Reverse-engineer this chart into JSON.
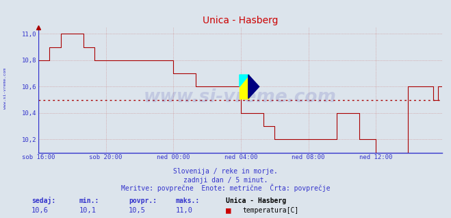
{
  "title": "Unica - Hasberg",
  "bg_color": "#dce4ec",
  "plot_bg_color": "#dce4ec",
  "line_color": "#aa0000",
  "avg_line_color": "#aa0000",
  "avg_value": 10.5,
  "ylim_min": 10.1,
  "ylim_max": 11.05,
  "yticks": [
    10.2,
    10.4,
    10.6,
    10.8,
    11.0
  ],
  "ytick_labels": [
    "10,2",
    "10,4",
    "10,6",
    "10,8",
    "11,0"
  ],
  "xtick_labels": [
    "sob 16:00",
    "sob 20:00",
    "ned 00:00",
    "ned 04:00",
    "ned 08:00",
    "ned 12:00"
  ],
  "xtick_positions": [
    0,
    48,
    96,
    144,
    192,
    240
  ],
  "grid_color": "#cc8888",
  "axis_color": "#3333cc",
  "text_color": "#3333cc",
  "watermark": "www.si-vreme.com",
  "watermark_color": "#1a1a99",
  "watermark_alpha": 0.13,
  "left_label": "www.si-vreme.com",
  "subtitle1": "Slovenija / reke in morje.",
  "subtitle2": "zadnji dan / 5 minut.",
  "subtitle3": "Meritve: povprečne  Enote: metrične  Črta: povprečje",
  "leg_labels": [
    "sedaj:",
    "min.:",
    "povpr.:",
    "maks.:"
  ],
  "leg_vals": [
    "10,6",
    "10,1",
    "10,5",
    "11,0"
  ],
  "legend_station": "Unica - Hasberg",
  "legend_series": "temperatura[C]",
  "legend_color": "#cc0000",
  "marker_x": 144,
  "marker_y": 10.6,
  "step_data": [
    10.8,
    10.8,
    10.8,
    10.8,
    10.8,
    10.8,
    10.8,
    10.8,
    10.9,
    10.9,
    10.9,
    10.9,
    10.9,
    10.9,
    10.9,
    10.9,
    11.0,
    11.0,
    11.0,
    11.0,
    11.0,
    11.0,
    11.0,
    11.0,
    11.0,
    11.0,
    11.0,
    11.0,
    11.0,
    11.0,
    11.0,
    11.0,
    10.9,
    10.9,
    10.9,
    10.9,
    10.9,
    10.9,
    10.9,
    10.9,
    10.8,
    10.8,
    10.8,
    10.8,
    10.8,
    10.8,
    10.8,
    10.8,
    10.8,
    10.8,
    10.8,
    10.8,
    10.8,
    10.8,
    10.8,
    10.8,
    10.8,
    10.8,
    10.8,
    10.8,
    10.8,
    10.8,
    10.8,
    10.8,
    10.8,
    10.8,
    10.8,
    10.8,
    10.8,
    10.8,
    10.8,
    10.8,
    10.8,
    10.8,
    10.8,
    10.8,
    10.8,
    10.8,
    10.8,
    10.8,
    10.8,
    10.8,
    10.8,
    10.8,
    10.8,
    10.8,
    10.8,
    10.8,
    10.8,
    10.8,
    10.8,
    10.8,
    10.8,
    10.8,
    10.8,
    10.8,
    10.7,
    10.7,
    10.7,
    10.7,
    10.7,
    10.7,
    10.7,
    10.7,
    10.7,
    10.7,
    10.7,
    10.7,
    10.7,
    10.7,
    10.7,
    10.7,
    10.6,
    10.6,
    10.6,
    10.6,
    10.6,
    10.6,
    10.6,
    10.6,
    10.6,
    10.6,
    10.6,
    10.6,
    10.6,
    10.6,
    10.6,
    10.6,
    10.6,
    10.6,
    10.6,
    10.6,
    10.6,
    10.6,
    10.6,
    10.6,
    10.6,
    10.6,
    10.6,
    10.6,
    10.6,
    10.6,
    10.6,
    10.6,
    10.4,
    10.4,
    10.4,
    10.4,
    10.4,
    10.4,
    10.4,
    10.4,
    10.4,
    10.4,
    10.4,
    10.4,
    10.4,
    10.4,
    10.4,
    10.4,
    10.3,
    10.3,
    10.3,
    10.3,
    10.3,
    10.3,
    10.3,
    10.3,
    10.2,
    10.2,
    10.2,
    10.2,
    10.2,
    10.2,
    10.2,
    10.2,
    10.2,
    10.2,
    10.2,
    10.2,
    10.2,
    10.2,
    10.2,
    10.2,
    10.2,
    10.2,
    10.2,
    10.2,
    10.2,
    10.2,
    10.2,
    10.2,
    10.2,
    10.2,
    10.2,
    10.2,
    10.2,
    10.2,
    10.2,
    10.2,
    10.2,
    10.2,
    10.2,
    10.2,
    10.2,
    10.2,
    10.2,
    10.2,
    10.2,
    10.2,
    10.2,
    10.2,
    10.4,
    10.4,
    10.4,
    10.4,
    10.4,
    10.4,
    10.4,
    10.4,
    10.4,
    10.4,
    10.4,
    10.4,
    10.4,
    10.4,
    10.4,
    10.4,
    10.2,
    10.2,
    10.2,
    10.2,
    10.2,
    10.2,
    10.2,
    10.2,
    10.2,
    10.2,
    10.2,
    10.2,
    10.1,
    10.1,
    10.1,
    10.1,
    10.1,
    10.1,
    10.1,
    10.1,
    10.1,
    10.1,
    10.1,
    10.1,
    10.1,
    10.1,
    10.1,
    10.1,
    10.1,
    10.1,
    10.1,
    10.1,
    10.1,
    10.1,
    10.1,
    10.6,
    10.6,
    10.6,
    10.6,
    10.6,
    10.6,
    10.6,
    10.6,
    10.6,
    10.6,
    10.6,
    10.6,
    10.6,
    10.6,
    10.6,
    10.6,
    10.6,
    10.6,
    10.5,
    10.5,
    10.5,
    10.6,
    10.6,
    10.6,
    10.6
  ]
}
